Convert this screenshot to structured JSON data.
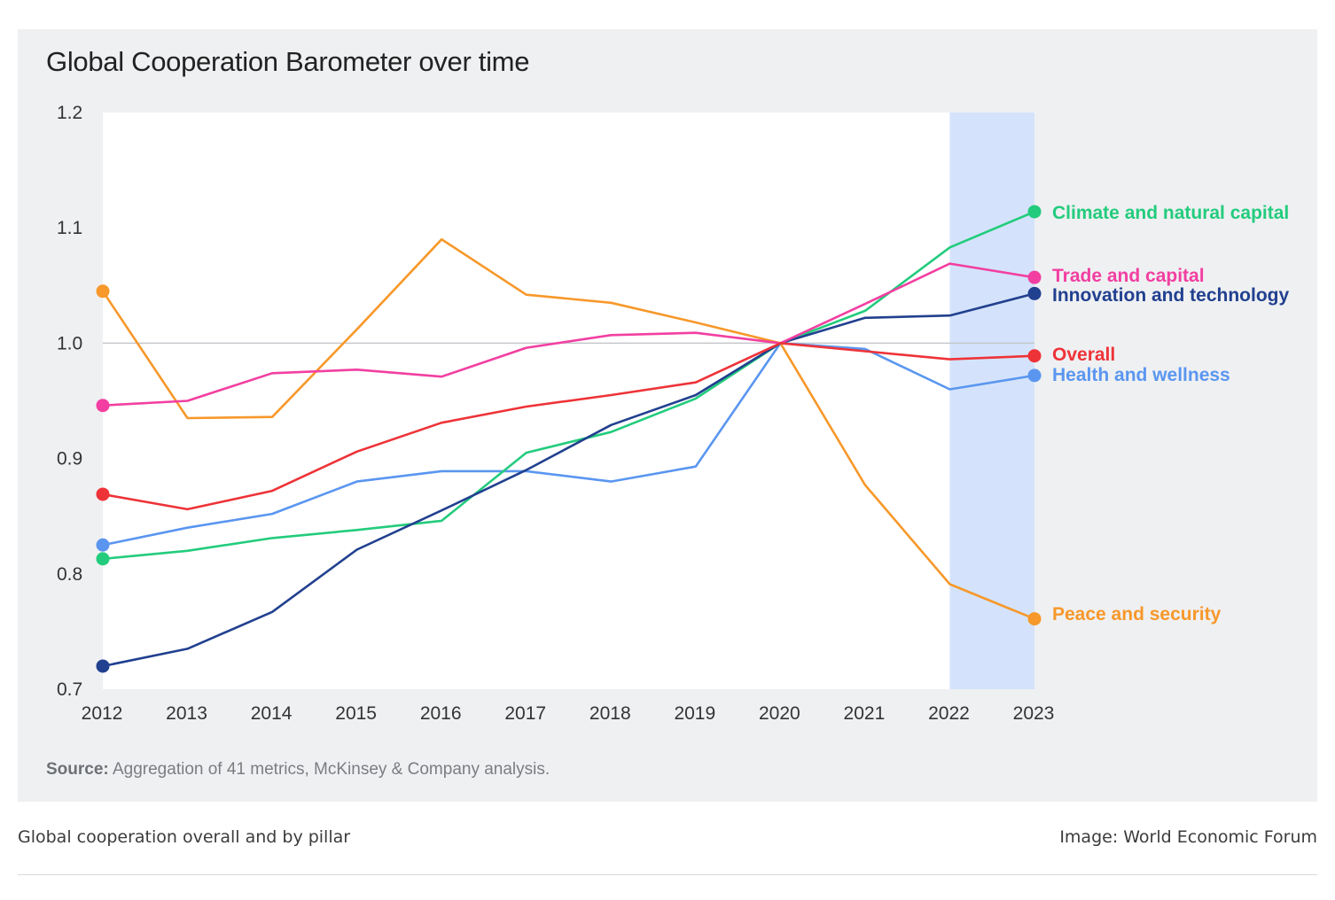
{
  "figure": {
    "source_label": "Source:",
    "source_text": "Aggregation of 41 metrics, McKinsey & Company analysis.",
    "caption": "Global cooperation overall and by pillar",
    "credit": "Image: World Economic Forum"
  },
  "chart_data": {
    "type": "line",
    "title": "Global Cooperation Barometer over time",
    "xlabel": "",
    "ylabel": "",
    "x": [
      2012,
      2013,
      2014,
      2015,
      2016,
      2017,
      2018,
      2019,
      2020,
      2021,
      2022,
      2023
    ],
    "xticks": [
      "2012",
      "2013",
      "2014",
      "2015",
      "2016",
      "2017",
      "2018",
      "2019",
      "2020",
      "2021",
      "2022",
      "2023"
    ],
    "ylim": [
      0.7,
      1.2
    ],
    "yticks": [
      "0.7",
      "0.8",
      "0.9",
      "1.0",
      "1.1",
      "1.2"
    ],
    "reference_line": 1.0,
    "highlight_range": [
      2022,
      2023
    ],
    "highlight_color": "#d4e3fb",
    "plot_background": "#ffffff",
    "grid": false,
    "legend": "direct labels at right end of lines",
    "series": [
      {
        "name": "Peace and security",
        "color": "#f7982a",
        "values": [
          1.045,
          0.935,
          0.936,
          1.012,
          1.09,
          1.042,
          1.035,
          1.018,
          1.0,
          0.877,
          0.791,
          0.761
        ]
      },
      {
        "name": "Health and wellness",
        "color": "#5a96f0",
        "values": [
          0.825,
          0.84,
          0.852,
          0.88,
          0.889,
          0.889,
          0.88,
          0.893,
          1.0,
          0.995,
          0.96,
          0.972
        ]
      },
      {
        "name": "Climate and natural capital",
        "color": "#23cc7d",
        "values": [
          0.813,
          0.82,
          0.831,
          0.838,
          0.846,
          0.905,
          0.923,
          0.952,
          1.0,
          1.028,
          1.083,
          1.114
        ]
      },
      {
        "name": "Innovation and technology",
        "color": "#21408f",
        "values": [
          0.72,
          0.735,
          0.767,
          0.821,
          0.855,
          0.89,
          0.929,
          0.955,
          1.0,
          1.022,
          1.024,
          1.043
        ]
      },
      {
        "name": "Trade and capital",
        "color": "#f23fa1",
        "values": [
          0.946,
          0.95,
          0.974,
          0.977,
          0.971,
          0.996,
          1.007,
          1.009,
          1.0,
          1.034,
          1.069,
          1.057
        ]
      },
      {
        "name": "Overall",
        "color": "#ee3338",
        "values": [
          0.869,
          0.856,
          0.872,
          0.906,
          0.931,
          0.945,
          0.955,
          0.966,
          1.0,
          0.993,
          0.986,
          0.989
        ]
      }
    ]
  }
}
